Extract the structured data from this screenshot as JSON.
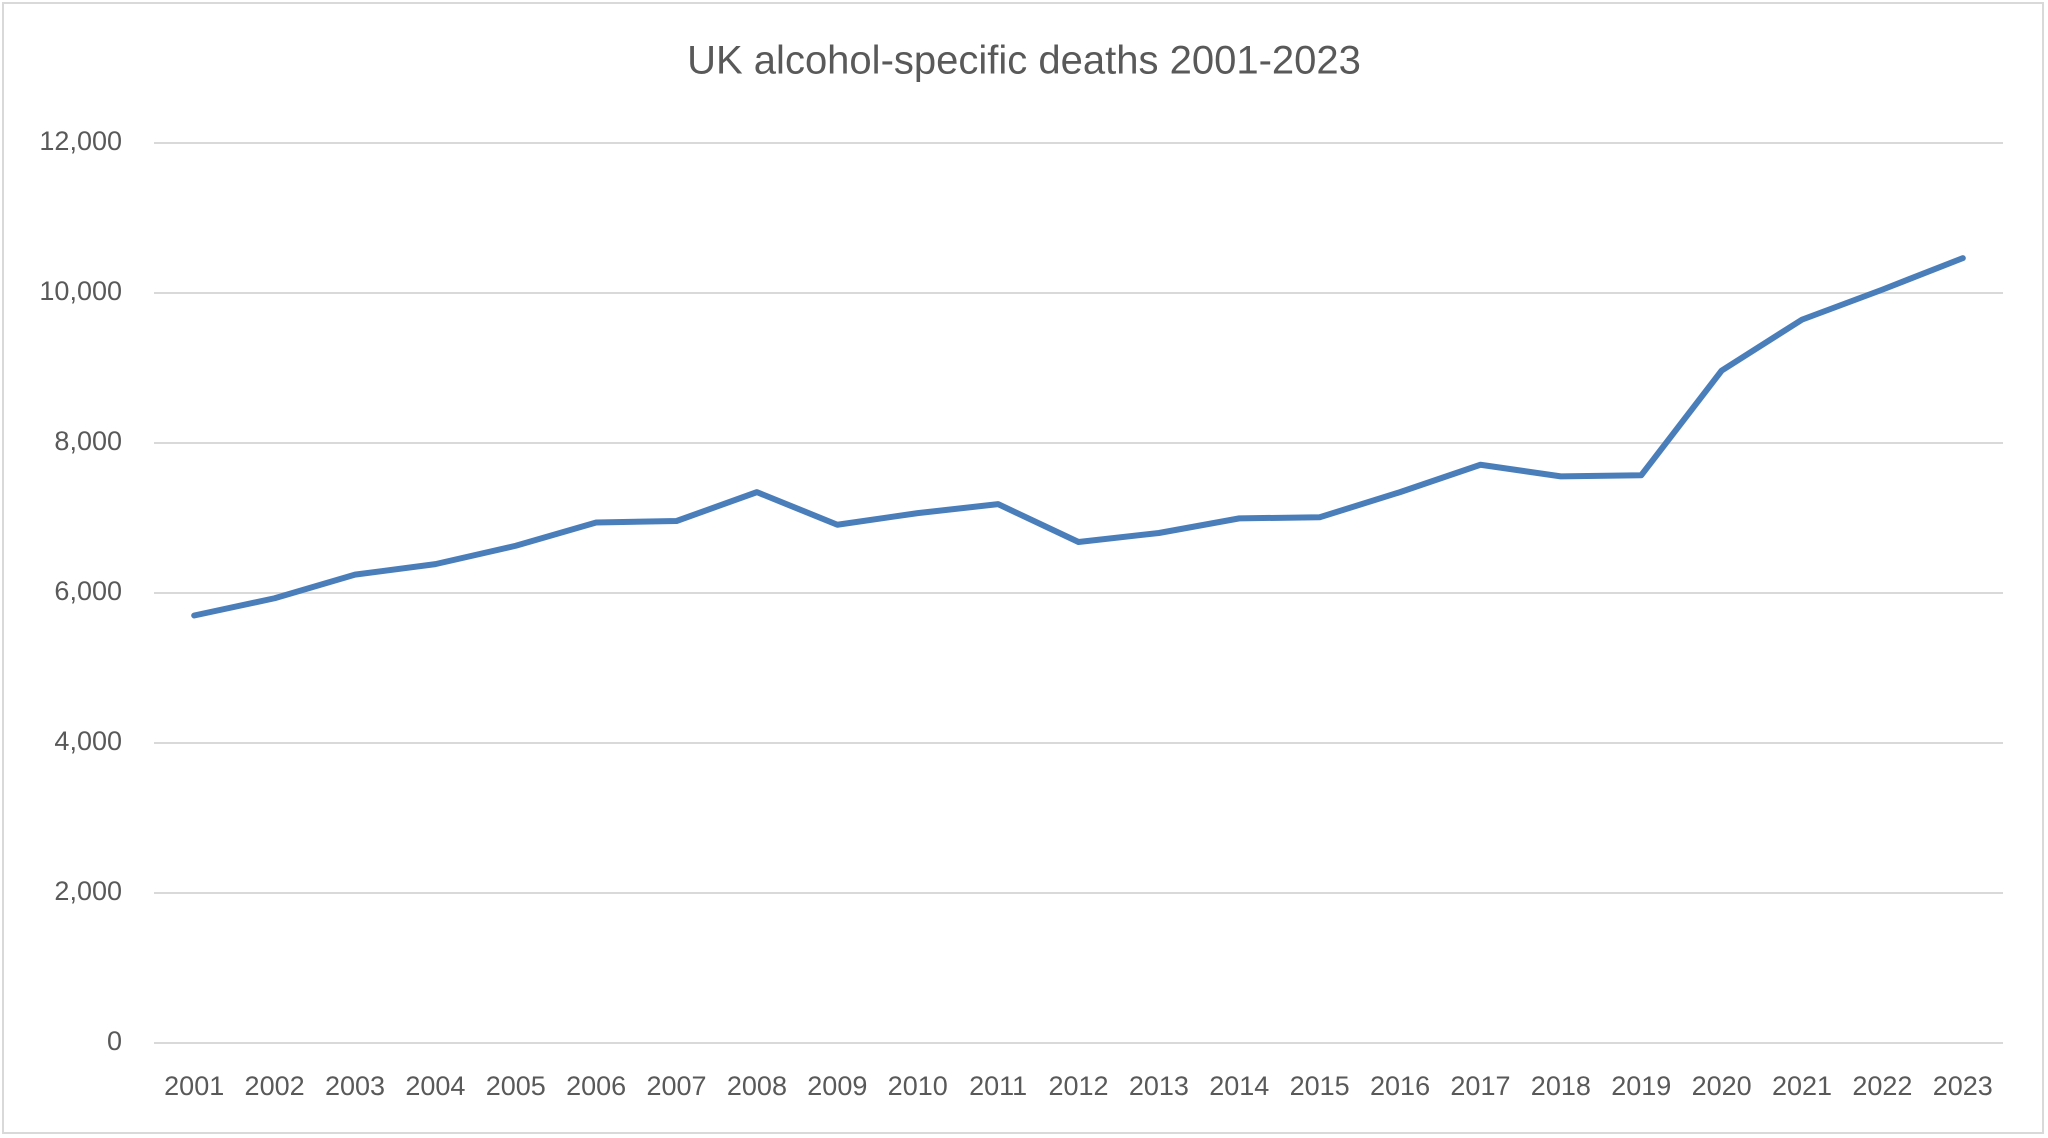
{
  "chart_data": {
    "type": "line",
    "title": "UK alcohol-specific deaths 2001-2023",
    "categories": [
      "2001",
      "2002",
      "2003",
      "2004",
      "2005",
      "2006",
      "2007",
      "2008",
      "2009",
      "2010",
      "2011",
      "2012",
      "2013",
      "2014",
      "2015",
      "2016",
      "2017",
      "2018",
      "2019",
      "2020",
      "2021",
      "2022",
      "2023"
    ],
    "series": [
      {
        "name": "UK alcohol-specific deaths",
        "color": "#4a7ebb",
        "values": [
          5700,
          5930,
          6245,
          6385,
          6630,
          6940,
          6960,
          7345,
          6910,
          7065,
          7185,
          6680,
          6800,
          6995,
          7010,
          7345,
          7710,
          7555,
          7570,
          8965,
          9645,
          10045,
          10465
        ]
      }
    ],
    "ylim": [
      0,
      12000
    ],
    "yticks": [
      0,
      {
        "value": 2000,
        "label": "2,000"
      },
      {
        "value": 4000,
        "label": "4,000"
      },
      {
        "value": 6000,
        "label": "6,000"
      },
      {
        "value": 8000,
        "label": "8,000"
      },
      {
        "value": 10000,
        "label": "10,000"
      },
      {
        "value": 12000,
        "label": "12,000"
      }
    ],
    "grid": true
  }
}
